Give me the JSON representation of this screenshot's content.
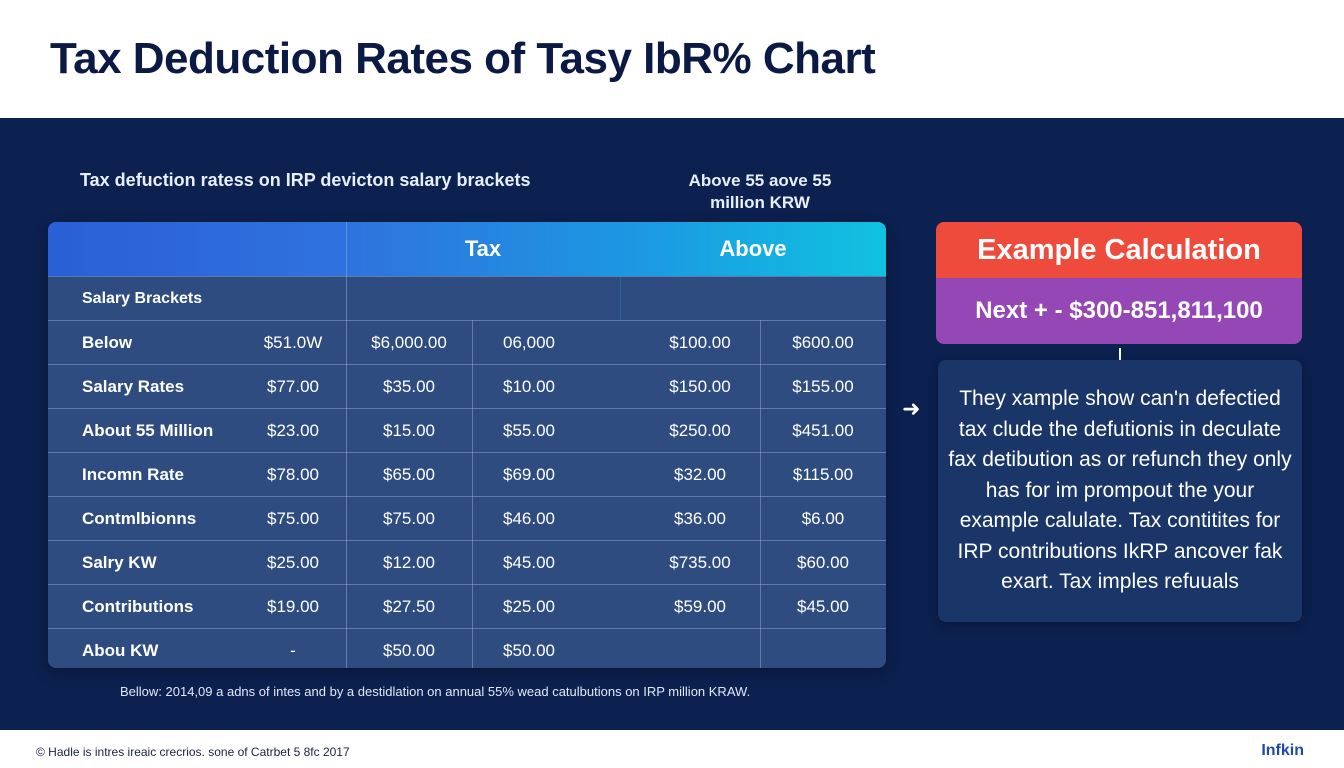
{
  "page": {
    "title": "Tax Deduction Rates of Tasy IbR% Chart"
  },
  "panel": {
    "subtitle": "Tax defuction ratess on IRP devicton salary brackets",
    "above_note": "Above 55 aove 55 million KRW",
    "footnote": "Bellow: 2014,09 a adns of intes and by a destidlation  on annual 55% wead catulbutions on IRP million KRAW."
  },
  "table": {
    "headers": [
      "",
      "Tax",
      "Above"
    ],
    "section_label": "Salary Brackets",
    "rows": [
      {
        "label": "Below",
        "values": [
          "$51.0W",
          "$6,000.00",
          "06,000",
          "$100.00",
          "$600.00"
        ]
      },
      {
        "label": "Salary Rates",
        "values": [
          "$77.00",
          "$35.00",
          "$10.00",
          "$150.00",
          "$155.00"
        ]
      },
      {
        "label": "About 55 Million",
        "values": [
          "$23.00",
          "$15.00",
          "$55.00",
          "$250.00",
          "$451.00"
        ]
      },
      {
        "label": "Incomn Rate",
        "values": [
          "$78.00",
          "$65.00",
          "$69.00",
          "$32.00",
          "$115.00"
        ]
      },
      {
        "label": "Contmlbionns",
        "values": [
          "$75.00",
          "$75.00",
          "$46.00",
          "$36.00",
          "$6.00"
        ]
      },
      {
        "label": "Salry KW",
        "values": [
          "$25.00",
          "$12.00",
          "$45.00",
          "$735.00",
          "$60.00"
        ]
      },
      {
        "label": "Contributions",
        "values": [
          "$19.00",
          "$27.50",
          "$25.00",
          "$59.00",
          "$45.00"
        ]
      },
      {
        "label": "Abou KW",
        "values": [
          "-",
          "$50.00",
          "$50.00",
          "",
          ""
        ]
      }
    ]
  },
  "example": {
    "title": "Example Calculation",
    "formula": "Next + - $300-851,811,100",
    "arrow_icon": "arrow-right-icon",
    "note": "They xample show can'n defectied tax clude the defutionis in deculate fax detibution as or refunch they only has for im prompout the your example calulate. Tax contitites for IRP contributions IkRP ancover fak exart. Tax imples refuuals"
  },
  "footer": {
    "copyright": "© Hadle is intres ireaic crecrios. sone of Catrbet 5 8fc 2017",
    "brand": "Infkin"
  },
  "colors": {
    "title": "#0b1a45",
    "background": "#0d2150",
    "table": "#2e4c80",
    "example_header": "#ef4b3c",
    "example_formula": "#9548b5"
  }
}
